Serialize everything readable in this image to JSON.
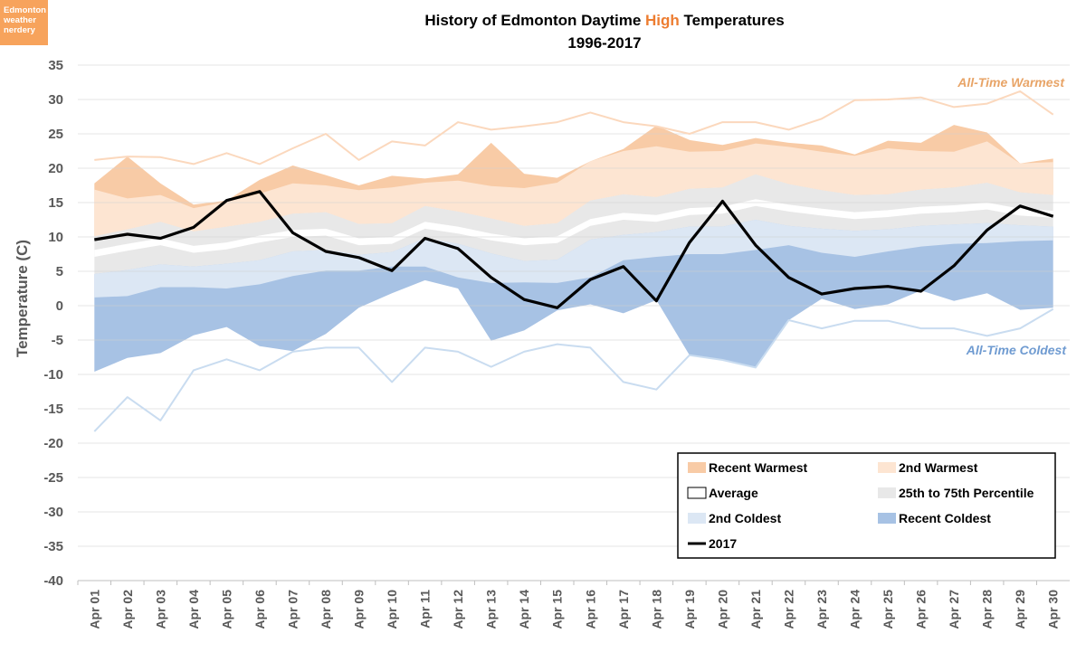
{
  "badge": {
    "lines": [
      "Edmonton",
      "weather",
      "nerdery"
    ]
  },
  "chart_data": {
    "type": "area",
    "title_parts": [
      "History of Edmonton Daytime ",
      "High",
      " Temperatures"
    ],
    "subtitle": "1996-2017",
    "ylabel": "Temperature (C)",
    "xlabel": "",
    "ylim": [
      -40,
      35
    ],
    "yticks": [
      35,
      30,
      25,
      20,
      15,
      10,
      5,
      0,
      -5,
      -10,
      -15,
      -20,
      -25,
      -30,
      -35,
      -40
    ],
    "grid": true,
    "legend_position": "bottom-right",
    "colors": {
      "recent_warmest": "#f8cba6",
      "second_warmest": "#fde5d2",
      "percentile_band": "#e8e8e8",
      "average_band": "#ffffff",
      "second_coldest": "#dce7f4",
      "recent_coldest": "#a7c2e4",
      "all_time_warmest_line": "#fbd8bd",
      "all_time_coldest_line": "#c9dcf0",
      "line_2017": "#000000",
      "title_highlight": "#ed7d31"
    },
    "categories": [
      "Apr 01",
      "Apr 02",
      "Apr 03",
      "Apr 04",
      "Apr 05",
      "Apr 06",
      "Apr 07",
      "Apr 08",
      "Apr 09",
      "Apr 10",
      "Apr 11",
      "Apr 12",
      "Apr 13",
      "Apr 14",
      "Apr 15",
      "Apr 16",
      "Apr 17",
      "Apr 18",
      "Apr 19",
      "Apr 20",
      "Apr 21",
      "Apr 22",
      "Apr 23",
      "Apr 24",
      "Apr 25",
      "Apr 26",
      "Apr 27",
      "Apr 28",
      "Apr 29",
      "Apr 30"
    ],
    "series": [
      {
        "name": "All-Time Warmest",
        "values": [
          21.2,
          21.7,
          21.6,
          20.6,
          22.2,
          20.6,
          22.9,
          25.0,
          21.2,
          23.9,
          23.3,
          26.7,
          25.6,
          26.1,
          26.7,
          28.1,
          26.7,
          26.1,
          25.0,
          26.7,
          26.7,
          25.6,
          27.2,
          29.9,
          30.0,
          30.3,
          28.9,
          29.4,
          31.2,
          27.8
        ]
      },
      {
        "name": "Recent Warmest",
        "values": [
          17.8,
          21.7,
          17.8,
          14.7,
          15.3,
          18.3,
          20.4,
          19.0,
          17.5,
          18.9,
          18.5,
          19.1,
          23.7,
          19.2,
          18.6,
          21.0,
          22.8,
          26.2,
          24.1,
          23.4,
          24.4,
          23.7,
          23.3,
          22.0,
          24.0,
          23.7,
          26.3,
          25.2,
          20.7,
          21.4
        ]
      },
      {
        "name": "2nd Warmest",
        "values": [
          16.9,
          15.6,
          16.1,
          14.2,
          15.1,
          16.3,
          17.8,
          17.5,
          16.8,
          17.2,
          17.9,
          18.2,
          17.4,
          17.1,
          17.9,
          21.0,
          22.5,
          23.2,
          22.4,
          22.5,
          23.6,
          23.1,
          22.4,
          21.8,
          22.9,
          22.5,
          22.4,
          23.9,
          20.7,
          20.9
        ]
      },
      {
        "name": "75th Percentile",
        "values": [
          10.1,
          11.1,
          12.2,
          10.8,
          11.5,
          12.2,
          13.4,
          13.6,
          11.9,
          12.0,
          14.5,
          13.7,
          12.7,
          11.6,
          12.0,
          15.3,
          16.2,
          15.8,
          17.0,
          17.2,
          19.1,
          17.7,
          16.8,
          16.1,
          16.2,
          16.9,
          17.2,
          17.9,
          16.5,
          16.1
        ]
      },
      {
        "name": "Average (upper)",
        "values": [
          8.1,
          9.0,
          9.8,
          8.7,
          9.2,
          10.2,
          11.0,
          11.2,
          9.8,
          10.0,
          12.2,
          11.5,
          10.5,
          9.8,
          10.1,
          12.6,
          13.5,
          13.2,
          14.2,
          14.4,
          15.5,
          14.7,
          14.1,
          13.6,
          13.9,
          14.4,
          14.6,
          15.0,
          14.1,
          13.8
        ]
      },
      {
        "name": "Average (lower)",
        "values": [
          7.1,
          8.0,
          8.8,
          7.7,
          8.2,
          9.2,
          10.0,
          10.2,
          8.8,
          9.0,
          11.2,
          10.5,
          9.5,
          8.8,
          9.1,
          11.6,
          12.5,
          12.2,
          13.2,
          13.4,
          14.5,
          13.7,
          13.1,
          12.6,
          12.9,
          13.4,
          13.6,
          14.0,
          13.1,
          12.8
        ]
      },
      {
        "name": "25th Percentile",
        "values": [
          4.6,
          5.2,
          6.0,
          5.7,
          6.1,
          6.6,
          7.9,
          8.1,
          7.4,
          7.8,
          9.8,
          9.0,
          7.6,
          6.5,
          6.7,
          9.6,
          10.3,
          10.7,
          11.5,
          11.5,
          12.5,
          11.6,
          11.2,
          10.9,
          11.1,
          11.6,
          11.8,
          12.0,
          11.7,
          11.5
        ]
      },
      {
        "name": "2nd Coldest",
        "values": [
          1.2,
          1.4,
          2.7,
          2.7,
          2.5,
          3.1,
          4.3,
          5.1,
          5.1,
          5.7,
          5.7,
          4.1,
          3.3,
          3.4,
          3.3,
          4.1,
          6.6,
          7.1,
          7.5,
          7.5,
          8.1,
          8.8,
          7.7,
          7.1,
          7.9,
          8.6,
          9.0,
          9.1,
          9.4,
          9.5
        ]
      },
      {
        "name": "Recent Coldest",
        "values": [
          -9.6,
          -7.6,
          -6.9,
          -4.3,
          -3.1,
          -5.9,
          -6.6,
          -4.1,
          -0.3,
          1.8,
          3.7,
          2.5,
          -5.1,
          -3.6,
          -0.7,
          0.2,
          -1.1,
          0.8,
          -7.2,
          -7.9,
          -9.0,
          -2.1,
          1.0,
          -0.5,
          0.2,
          2.2,
          0.7,
          1.8,
          -0.6,
          -0.3
        ]
      },
      {
        "name": "All-Time Coldest",
        "values": [
          -18.3,
          -13.3,
          -16.7,
          -9.4,
          -7.8,
          -9.4,
          -6.7,
          -6.1,
          -6.1,
          -11.1,
          -6.1,
          -6.7,
          -8.9,
          -6.7,
          -5.6,
          -6.1,
          -11.1,
          -12.2,
          -7.2,
          -7.9,
          -9.0,
          -2.1,
          -3.3,
          -2.2,
          -2.2,
          -3.3,
          -3.3,
          -4.4,
          -3.3,
          -0.5
        ]
      },
      {
        "name": "2017",
        "values": [
          9.6,
          10.4,
          9.8,
          11.4,
          15.3,
          16.6,
          10.6,
          7.9,
          7.0,
          5.1,
          9.8,
          8.3,
          4.1,
          0.9,
          -0.3,
          3.8,
          5.7,
          0.7,
          9.2,
          15.2,
          8.8,
          4.1,
          1.7,
          2.5,
          2.8,
          2.1,
          5.8,
          11.0,
          14.5,
          13.0
        ]
      }
    ],
    "annotations": {
      "warm": "All-Time Warmest",
      "cold": "All-Time Coldest"
    },
    "legend": [
      {
        "label": "Recent Warmest",
        "key": "recent_warmest"
      },
      {
        "label": "2nd Warmest",
        "key": "second_warmest"
      },
      {
        "label": "Average",
        "key": "average_band"
      },
      {
        "label": "25th to 75th Percentile",
        "key": "percentile_band"
      },
      {
        "label": "2nd Coldest",
        "key": "second_coldest"
      },
      {
        "label": "Recent Coldest",
        "key": "recent_coldest"
      },
      {
        "label": "2017",
        "key": "line_2017"
      }
    ]
  }
}
